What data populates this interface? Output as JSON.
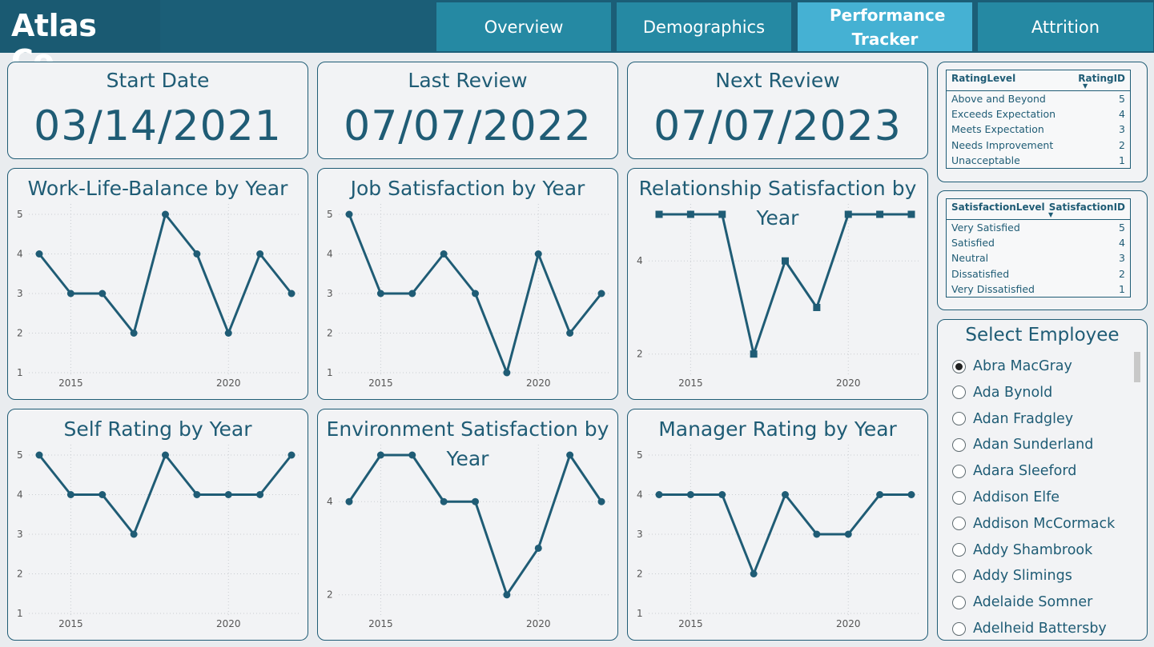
{
  "header": {
    "logo": "Atlas Co.",
    "tabs": [
      {
        "label": "Overview",
        "active": false
      },
      {
        "label": "Demographics",
        "active": false
      },
      {
        "label": "Performance Tracker",
        "active": true
      },
      {
        "label": "Attrition",
        "active": false
      }
    ]
  },
  "dates": {
    "start": {
      "title": "Start Date",
      "value": "03/14/2021"
    },
    "last": {
      "title": "Last Review",
      "value": "07/07/2022"
    },
    "next": {
      "title": "Next Review",
      "value": "07/07/2023"
    }
  },
  "rating_table": {
    "headers": [
      "RatingLevel",
      "RatingID"
    ],
    "rows": [
      [
        "Above and Beyond",
        "5"
      ],
      [
        "Exceeds Expectation",
        "4"
      ],
      [
        "Meets Expectation",
        "3"
      ],
      [
        "Needs Improvement",
        "2"
      ],
      [
        "Unacceptable",
        "1"
      ]
    ]
  },
  "satisfaction_table": {
    "headers": [
      "SatisfactionLevel",
      "SatisfactionID"
    ],
    "rows": [
      [
        "Very Satisfied",
        "5"
      ],
      [
        "Satisfied",
        "4"
      ],
      [
        "Neutral",
        "3"
      ],
      [
        "Dissatisfied",
        "2"
      ],
      [
        "Very Dissatisfied",
        "1"
      ]
    ]
  },
  "slicer": {
    "title": "Select Employee",
    "selected": "Abra MacGray",
    "items": [
      "Abra MacGray",
      "Ada Bynold",
      "Adan Fradgley",
      "Adan Sunderland",
      "Adara Sleeford",
      "Addison Elfe",
      "Addison McCormack",
      "Addy Shambrook",
      "Addy Slimings",
      "Adelaide Somner",
      "Adelheid Battersby"
    ]
  },
  "colors": {
    "accent": "#1f5c75",
    "tab": "#2589a3",
    "tab_active": "#45b1d3",
    "header": "#1b5e77"
  },
  "chart_data": [
    {
      "id": "wlb",
      "type": "line",
      "title": "Work-Life-Balance by Year",
      "x": [
        2014,
        2015,
        2016,
        2017,
        2018,
        2019,
        2020,
        2021,
        2022
      ],
      "values": [
        4,
        3,
        3,
        2,
        5,
        4,
        2,
        4,
        3
      ],
      "ylim": [
        1,
        5
      ],
      "yticks": [
        1,
        2,
        3,
        4,
        5
      ],
      "xticks": [
        2015,
        2020
      ],
      "marker": "circle"
    },
    {
      "id": "job",
      "type": "line",
      "title": "Job Satisfaction by Year",
      "x": [
        2014,
        2015,
        2016,
        2017,
        2018,
        2019,
        2020,
        2021,
        2022
      ],
      "values": [
        5,
        3,
        3,
        4,
        3,
        1,
        4,
        2,
        3
      ],
      "ylim": [
        1,
        5
      ],
      "yticks": [
        1,
        2,
        3,
        4,
        5
      ],
      "xticks": [
        2015,
        2020
      ],
      "marker": "circle"
    },
    {
      "id": "rel",
      "type": "line",
      "title": "Relationship Satisfaction by Year",
      "x": [
        2014,
        2015,
        2016,
        2017,
        2018,
        2019,
        2020,
        2021,
        2022
      ],
      "values": [
        5,
        5,
        5,
        2,
        4,
        3,
        5,
        5,
        5
      ],
      "ylim": [
        1.6,
        5
      ],
      "yticks": [
        2,
        4
      ],
      "xticks": [
        2015,
        2020
      ],
      "marker": "square"
    },
    {
      "id": "self",
      "type": "line",
      "title": "Self Rating by Year",
      "x": [
        2014,
        2015,
        2016,
        2017,
        2018,
        2019,
        2020,
        2021,
        2022
      ],
      "values": [
        5,
        4,
        4,
        3,
        5,
        4,
        4,
        4,
        5
      ],
      "ylim": [
        1,
        5
      ],
      "yticks": [
        1,
        2,
        3,
        4,
        5
      ],
      "xticks": [
        2015,
        2020
      ],
      "marker": "circle"
    },
    {
      "id": "env",
      "type": "line",
      "title": "Environment Satisfaction by Year",
      "x": [
        2014,
        2015,
        2016,
        2017,
        2018,
        2019,
        2020,
        2021,
        2022
      ],
      "values": [
        4,
        5,
        5,
        4,
        4,
        2,
        3,
        5,
        4
      ],
      "ylim": [
        1.6,
        5
      ],
      "yticks": [
        2,
        4
      ],
      "xticks": [
        2015,
        2020
      ],
      "marker": "circle"
    },
    {
      "id": "mgr",
      "type": "line",
      "title": "Manager Rating by Year",
      "x": [
        2014,
        2015,
        2016,
        2017,
        2018,
        2019,
        2020,
        2021,
        2022
      ],
      "values": [
        4,
        4,
        4,
        2,
        4,
        3,
        3,
        4,
        4
      ],
      "ylim": [
        1,
        5
      ],
      "yticks": [
        1,
        2,
        3,
        4,
        5
      ],
      "xticks": [
        2015,
        2020
      ],
      "marker": "circle"
    }
  ]
}
